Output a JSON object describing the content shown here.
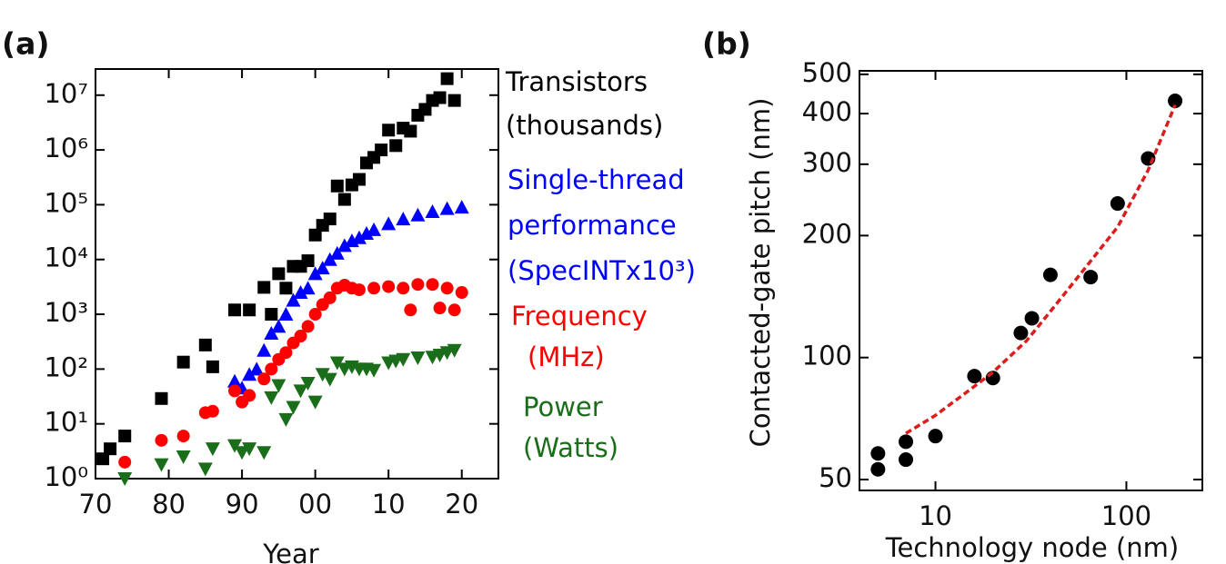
{
  "chart_data": [
    {
      "type": "scatter",
      "panel_label": "(a)",
      "x_label": "Year",
      "log_y": true,
      "xlim": [
        1970,
        2025
      ],
      "ylim": [
        1,
        30000000
      ],
      "xticks": [
        {
          "value": 1970,
          "label": "70"
        },
        {
          "value": 1980,
          "label": "80"
        },
        {
          "value": 1990,
          "label": "90"
        },
        {
          "value": 2000,
          "label": "00"
        },
        {
          "value": 2010,
          "label": "10"
        },
        {
          "value": 2020,
          "label": "20"
        }
      ],
      "yticks": [
        {
          "value": 1,
          "label": "10⁰"
        },
        {
          "value": 10,
          "label": "10¹"
        },
        {
          "value": 100,
          "label": "10²"
        },
        {
          "value": 1000,
          "label": "10³"
        },
        {
          "value": 10000,
          "label": "10⁴"
        },
        {
          "value": 100000,
          "label": "10⁵"
        },
        {
          "value": 1000000,
          "label": "10⁶"
        },
        {
          "value": 10000000,
          "label": "10⁷"
        }
      ],
      "series": [
        {
          "name_lines": [
            "Transistors",
            "(thousands)"
          ],
          "color": "#000000",
          "marker": "square",
          "x": [
            1971,
            1972,
            1974,
            1979,
            1982,
            1985,
            1986,
            1989,
            1991,
            1993,
            1994,
            1995,
            1996,
            1997,
            1998,
            1999,
            2000,
            2001,
            2002,
            2003,
            2004,
            2005,
            2006,
            2007,
            2008,
            2009,
            2010,
            2011,
            2012,
            2013,
            2014,
            2015,
            2016,
            2017,
            2018,
            2019
          ],
          "values": [
            2.3,
            3.5,
            6,
            29,
            134,
            275,
            110,
            1200,
            1200,
            3100,
            1000,
            5500,
            3000,
            7500,
            7500,
            9500,
            28000,
            42000,
            55000,
            220000,
            125000,
            230000,
            290000,
            580000,
            730000,
            1000000,
            2300000,
            1200000,
            2500000,
            2200000,
            4300000,
            5500000,
            8000000,
            9000000,
            20000000,
            8000000
          ]
        },
        {
          "name_lines": [
            "Single-thread",
            "performance",
            "(SpecINTx10³)"
          ],
          "color": "#0000ff",
          "marker": "triangle",
          "x": [
            1989,
            1990,
            1991,
            1992,
            1993,
            1994,
            1995,
            1996,
            1997,
            1998,
            1999,
            2000,
            2001,
            2002,
            2003,
            2004,
            2005,
            2006,
            2007,
            2008,
            2010,
            2012,
            2014,
            2016,
            2018,
            2020
          ],
          "values": [
            60,
            45,
            80,
            100,
            220,
            450,
            600,
            1000,
            1800,
            2500,
            3000,
            5500,
            7000,
            10000,
            13000,
            18000,
            22000,
            25000,
            30000,
            35000,
            45000,
            55000,
            65000,
            75000,
            85000,
            90000
          ]
        },
        {
          "name_lines": [
            "Frequency",
            "(MHz)"
          ],
          "color": "#ff0000",
          "marker": "circle",
          "x": [
            1974,
            1979,
            1982,
            1985,
            1986,
            1989,
            1990,
            1991,
            1993,
            1994,
            1995,
            1996,
            1997,
            1998,
            1999,
            2000,
            2001,
            2002,
            2003,
            2004,
            2005,
            2006,
            2008,
            2010,
            2012,
            2013,
            2014,
            2016,
            2017,
            2018,
            2019,
            2020
          ],
          "values": [
            2,
            5,
            6,
            16,
            17,
            40,
            25,
            33,
            66,
            100,
            150,
            200,
            300,
            400,
            600,
            1000,
            1500,
            2000,
            3000,
            3400,
            3000,
            2800,
            3000,
            3200,
            3000,
            1200,
            3500,
            3500,
            1300,
            3000,
            1200,
            2500
          ]
        },
        {
          "name_lines": [
            "Power",
            "(Watts)"
          ],
          "color": "#1a6e1a",
          "marker": "down-triangle",
          "x": [
            1974,
            1979,
            1982,
            1985,
            1986,
            1989,
            1990,
            1991,
            1993,
            1994,
            1995,
            1996,
            1997,
            1998,
            1999,
            2000,
            2001,
            2002,
            2003,
            2004,
            2005,
            2006,
            2007,
            2008,
            2010,
            2011,
            2012,
            2014,
            2016,
            2017,
            2018,
            2019
          ],
          "values": [
            1,
            1.8,
            2.5,
            1.5,
            3.5,
            4,
            3,
            3.5,
            3,
            30,
            50,
            12,
            20,
            40,
            55,
            25,
            80,
            65,
            130,
            100,
            110,
            100,
            100,
            95,
            130,
            140,
            150,
            160,
            165,
            180,
            200,
            220
          ]
        }
      ]
    },
    {
      "type": "scatter",
      "panel_label": "(b)",
      "x_label": "Technology node (nm)",
      "y_label": "Contacted-gate pitch (nm)",
      "log_x": true,
      "log_y": true,
      "xlim": [
        4,
        250
      ],
      "ylim": [
        47,
        510
      ],
      "xticks": [
        10,
        100
      ],
      "yticks": [
        50,
        100,
        200,
        300,
        400,
        500
      ],
      "series": [
        {
          "color": "#000000",
          "marker": "circle",
          "x": [
            5,
            5,
            7,
            7,
            10,
            16,
            20,
            28,
            32,
            40,
            65,
            90,
            130,
            180
          ],
          "values": [
            58,
            53,
            62,
            56,
            64,
            90,
            89,
            115,
            125,
            160,
            158,
            240,
            310,
            430
          ]
        },
        {
          "color": "#dd1c1c",
          "marker": "dashed-line",
          "x": [
            7,
            10,
            15,
            20,
            30,
            40,
            60,
            90,
            130,
            180
          ],
          "values": [
            65,
            72,
            83,
            92,
            110,
            130,
            165,
            210,
            290,
            420
          ]
        }
      ]
    }
  ]
}
